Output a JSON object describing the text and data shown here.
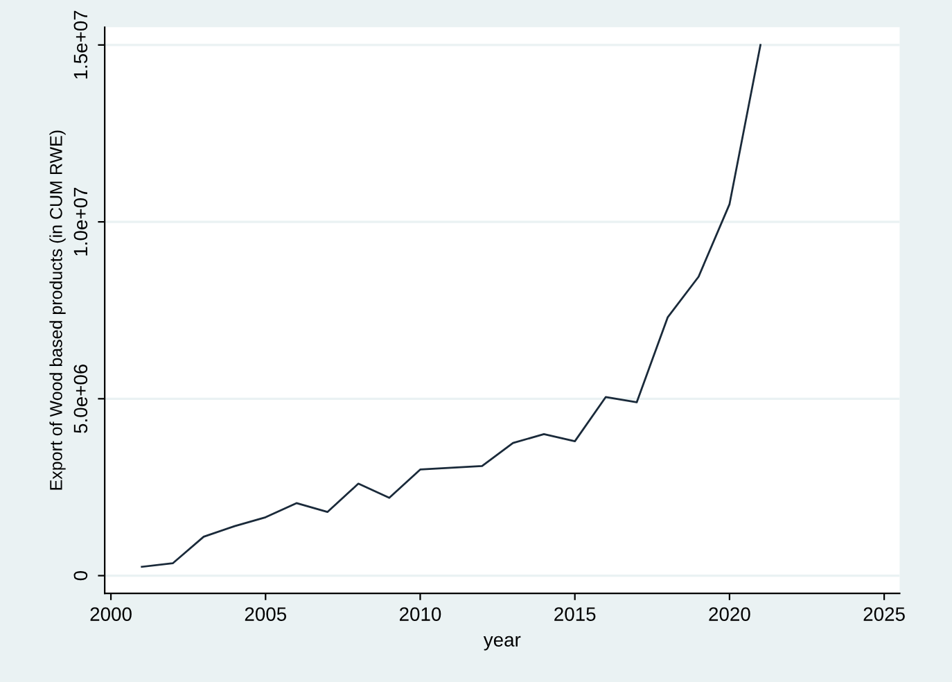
{
  "chart_data": {
    "type": "line",
    "xlabel": "year",
    "ylabel": "Export of Wood based products (in CUM RWE)",
    "x": [
      2001,
      2002,
      2003,
      2004,
      2005,
      2006,
      2007,
      2008,
      2009,
      2010,
      2011,
      2012,
      2013,
      2014,
      2015,
      2016,
      2017,
      2018,
      2019,
      2020,
      2021
    ],
    "series": [
      {
        "color": "#1a2a3a",
        "values": [
          250000,
          350000,
          1100000,
          1400000,
          1650000,
          2050000,
          1800000,
          2600000,
          2200000,
          3000000,
          3050000,
          3100000,
          3750000,
          4000000,
          3800000,
          5050000,
          4900000,
          7300000,
          8450000,
          10500000,
          15000000
        ]
      }
    ],
    "xlim": [
      1999.8,
      2025.5
    ],
    "ylim": [
      -500000,
      15500000
    ],
    "xticks": [
      2000,
      2005,
      2010,
      2015,
      2020,
      2025
    ],
    "yticks": [
      {
        "value": 0,
        "label": "0"
      },
      {
        "value": 5000000,
        "label": "5.0e+06"
      },
      {
        "value": 10000000,
        "label": "1.0e+07"
      },
      {
        "value": 15000000,
        "label": "1.5e+07"
      }
    ],
    "grid": "y",
    "legend": false,
    "marker": "none",
    "line_style": "solid"
  }
}
